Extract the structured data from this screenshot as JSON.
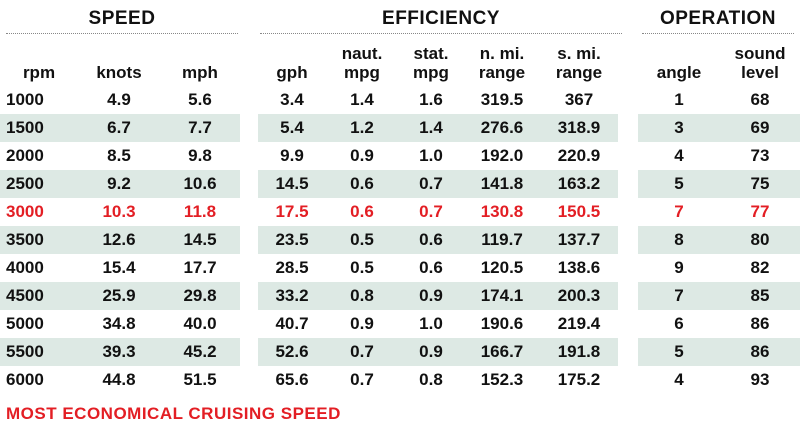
{
  "groups": {
    "speed": "SPEED",
    "efficiency": "EFFICIENCY",
    "operation": "OPERATION"
  },
  "columns": {
    "rpm": "rpm",
    "knots": "knots",
    "mph": "mph",
    "gph": "gph",
    "naut_mpg": "naut.\nmpg",
    "stat_mpg": "stat.\nmpg",
    "n_mi_range": "n. mi.\nrange",
    "s_mi_range": "s. mi.\nrange",
    "angle": "angle",
    "sound_level": "sound\nlevel"
  },
  "rows": [
    {
      "rpm": "1000",
      "knots": "4.9",
      "mph": "5.6",
      "gph": "3.4",
      "naut_mpg": "1.4",
      "stat_mpg": "1.6",
      "n_mi_range": "319.5",
      "s_mi_range": "367",
      "angle": "1",
      "sound_level": "68"
    },
    {
      "rpm": "1500",
      "knots": "6.7",
      "mph": "7.7",
      "gph": "5.4",
      "naut_mpg": "1.2",
      "stat_mpg": "1.4",
      "n_mi_range": "276.6",
      "s_mi_range": "318.9",
      "angle": "3",
      "sound_level": "69"
    },
    {
      "rpm": "2000",
      "knots": "8.5",
      "mph": "9.8",
      "gph": "9.9",
      "naut_mpg": "0.9",
      "stat_mpg": "1.0",
      "n_mi_range": "192.0",
      "s_mi_range": "220.9",
      "angle": "4",
      "sound_level": "73"
    },
    {
      "rpm": "2500",
      "knots": "9.2",
      "mph": "10.6",
      "gph": "14.5",
      "naut_mpg": "0.6",
      "stat_mpg": "0.7",
      "n_mi_range": "141.8",
      "s_mi_range": "163.2",
      "angle": "5",
      "sound_level": "75"
    },
    {
      "rpm": "3000",
      "knots": "10.3",
      "mph": "11.8",
      "gph": "17.5",
      "naut_mpg": "0.6",
      "stat_mpg": "0.7",
      "n_mi_range": "130.8",
      "s_mi_range": "150.5",
      "angle": "7",
      "sound_level": "77"
    },
    {
      "rpm": "3500",
      "knots": "12.6",
      "mph": "14.5",
      "gph": "23.5",
      "naut_mpg": "0.5",
      "stat_mpg": "0.6",
      "n_mi_range": "119.7",
      "s_mi_range": "137.7",
      "angle": "8",
      "sound_level": "80"
    },
    {
      "rpm": "4000",
      "knots": "15.4",
      "mph": "17.7",
      "gph": "28.5",
      "naut_mpg": "0.5",
      "stat_mpg": "0.6",
      "n_mi_range": "120.5",
      "s_mi_range": "138.6",
      "angle": "9",
      "sound_level": "82"
    },
    {
      "rpm": "4500",
      "knots": "25.9",
      "mph": "29.8",
      "gph": "33.2",
      "naut_mpg": "0.8",
      "stat_mpg": "0.9",
      "n_mi_range": "174.1",
      "s_mi_range": "200.3",
      "angle": "7",
      "sound_level": "85"
    },
    {
      "rpm": "5000",
      "knots": "34.8",
      "mph": "40.0",
      "gph": "40.7",
      "naut_mpg": "0.9",
      "stat_mpg": "1.0",
      "n_mi_range": "190.6",
      "s_mi_range": "219.4",
      "angle": "6",
      "sound_level": "86"
    },
    {
      "rpm": "5500",
      "knots": "39.3",
      "mph": "45.2",
      "gph": "52.6",
      "naut_mpg": "0.7",
      "stat_mpg": "0.9",
      "n_mi_range": "166.7",
      "s_mi_range": "191.8",
      "angle": "5",
      "sound_level": "86"
    },
    {
      "rpm": "6000",
      "knots": "44.8",
      "mph": "51.5",
      "gph": "65.6",
      "naut_mpg": "0.7",
      "stat_mpg": "0.8",
      "n_mi_range": "152.3",
      "s_mi_range": "175.2",
      "angle": "4",
      "sound_level": "93"
    }
  ],
  "highlight_rpm": "3000",
  "footnote": "MOST ECONOMICAL CRUISING SPEED",
  "colors": {
    "highlight": "#e31e24",
    "band": "#dde9e4"
  }
}
